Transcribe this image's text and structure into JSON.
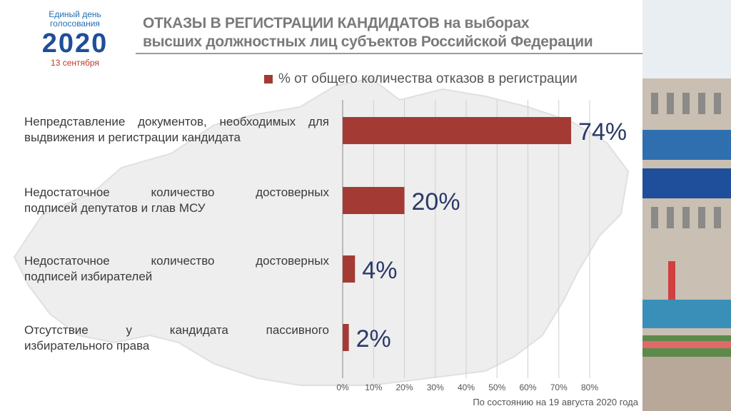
{
  "logo": {
    "line1": "Единый день",
    "line2": "голосования",
    "year": "2020",
    "date": "13 сентября"
  },
  "title": {
    "line1": "ОТКАЗЫ В РЕГИСТРАЦИИ КАНДИДАТОВ на выборах",
    "line2": "высших должностных лиц субъектов Российской Федерации"
  },
  "colors": {
    "bar": "#a33b34",
    "value_text": "#2b3a67"
  },
  "chart_data": {
    "type": "bar",
    "orientation": "horizontal",
    "categories": [
      [
        "Непредставление документов, необходимых для",
        "выдвижения и регистрации кандидата"
      ],
      [
        "Недостаточное количество достоверных",
        "подписей депутатов и глав МСУ"
      ],
      [
        "Недостаточное количество достоверных",
        "подписей избирателей"
      ],
      [
        "Отсутствие у кандидата пассивного",
        "избирательного права"
      ]
    ],
    "values": [
      74,
      20,
      4,
      2
    ],
    "value_labels": [
      "74%",
      "20%",
      "4%",
      "2%"
    ],
    "series_name": "% от общего количества отказов в регистрации",
    "xlim": [
      0,
      80
    ],
    "xticks": [
      "0%",
      "10%",
      "20%",
      "30%",
      "40%",
      "50%",
      "60%",
      "70%",
      "80%"
    ],
    "legend_position": "top"
  },
  "footnote": "По состоянию на 19 августа 2020 года"
}
